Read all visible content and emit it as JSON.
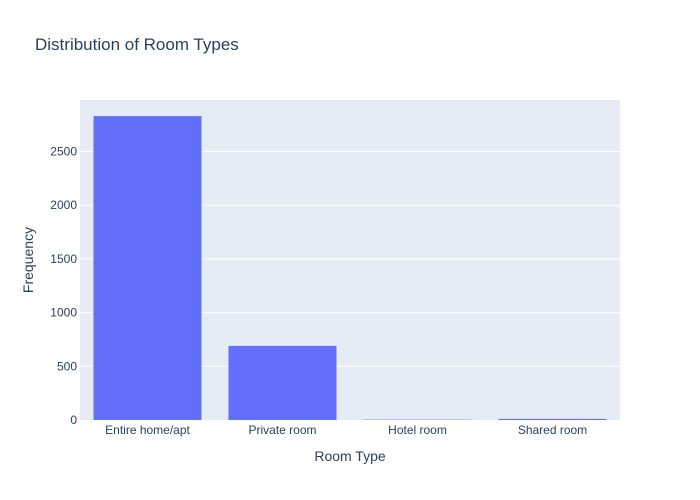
{
  "chart_data": {
    "type": "bar",
    "title": "Distribution of Room Types",
    "xlabel": "Room Type",
    "ylabel": "Frequency",
    "categories": [
      "Entire home/apt",
      "Private room",
      "Hotel room",
      "Shared room"
    ],
    "values": [
      2830,
      690,
      3,
      10
    ],
    "ylim": [
      0,
      2980
    ],
    "yticks": [
      0,
      500,
      1000,
      1500,
      2000,
      2500
    ],
    "grid": true,
    "legend": "none"
  },
  "colors": {
    "plot_background": "#E5ECF6",
    "bar": "#636EFA",
    "gridline": "#FFFFFF",
    "text": "#2A3F5F"
  }
}
